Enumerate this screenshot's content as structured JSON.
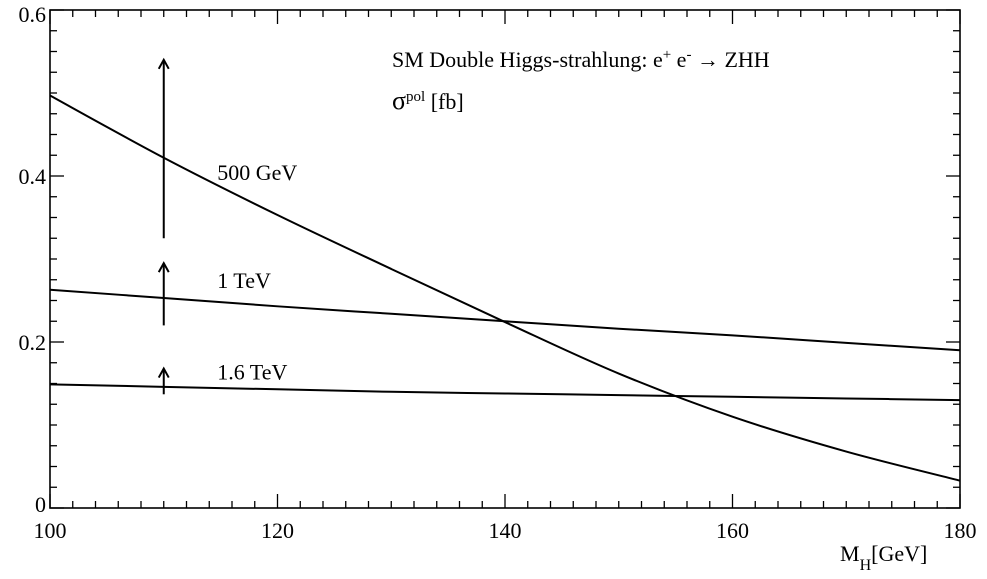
{
  "chart_data": {
    "type": "line",
    "title": "SM Double Higgs-strahlung: e⁺ e⁻ → ZHH",
    "subtitle": "σpol [fb]",
    "xlabel": "M_H[GeV]",
    "ylabel": "",
    "xlim": [
      100,
      180
    ],
    "ylim": [
      0,
      0.6
    ],
    "x_ticks": [
      100,
      120,
      140,
      160,
      180
    ],
    "y_ticks": [
      0,
      0.2,
      0.4,
      0.6
    ],
    "x_tick_labels": [
      "100",
      "120",
      "140",
      "160",
      "180"
    ],
    "y_tick_labels": [
      "0",
      "0.2",
      "0.4",
      "0.6"
    ],
    "x": [
      100,
      110,
      120,
      130,
      140,
      150,
      160,
      170,
      180
    ],
    "series": [
      {
        "name": "500 GeV",
        "values": [
          0.497,
          0.422,
          0.353,
          0.288,
          0.224,
          0.162,
          0.11,
          0.068,
          0.033
        ]
      },
      {
        "name": "1 TeV",
        "values": [
          0.263,
          0.253,
          0.243,
          0.234,
          0.225,
          0.216,
          0.208,
          0.199,
          0.19
        ]
      },
      {
        "name": "1.6 TeV",
        "values": [
          0.149,
          0.146,
          0.143,
          0.14,
          0.138,
          0.136,
          0.134,
          0.132,
          0.13
        ]
      }
    ],
    "arrows": [
      {
        "x": 110,
        "y_from": 0.325,
        "y_to": 0.54
      },
      {
        "x": 110,
        "y_from": 0.22,
        "y_to": 0.295
      },
      {
        "x": 110,
        "y_from": 0.137,
        "y_to": 0.168
      }
    ],
    "grid": false,
    "legend": "none"
  }
}
